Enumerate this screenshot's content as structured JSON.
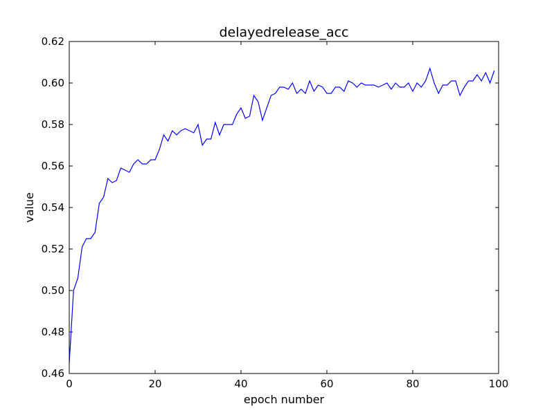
{
  "chart_data": {
    "type": "line",
    "title": "delayedrelease_acc",
    "xlabel": "epoch number",
    "ylabel": "value",
    "xlim": [
      0,
      100
    ],
    "ylim": [
      0.46,
      0.62
    ],
    "xticks": [
      0,
      20,
      40,
      60,
      80,
      100
    ],
    "xtick_labels": [
      "0",
      "20",
      "40",
      "60",
      "80",
      "100"
    ],
    "yticks": [
      0.46,
      0.48,
      0.5,
      0.52,
      0.54,
      0.56,
      0.58,
      0.6,
      0.62
    ],
    "ytick_labels": [
      "0.46",
      "0.48",
      "0.50",
      "0.52",
      "0.54",
      "0.56",
      "0.58",
      "0.60",
      "0.62"
    ],
    "grid": false,
    "legend": "none",
    "line_color": "#0000ff",
    "series": [
      {
        "x": [
          0,
          1,
          2,
          3,
          4,
          5,
          6,
          7,
          8,
          9,
          10,
          11,
          12,
          13,
          14,
          15,
          16,
          17,
          18,
          19,
          20,
          21,
          22,
          23,
          24,
          25,
          26,
          27,
          28,
          29,
          30,
          31,
          32,
          33,
          34,
          35,
          36,
          37,
          38,
          39,
          40,
          41,
          42,
          43,
          44,
          45,
          46,
          47,
          48,
          49,
          50,
          51,
          52,
          53,
          54,
          55,
          56,
          57,
          58,
          59,
          60,
          61,
          62,
          63,
          64,
          65,
          66,
          67,
          68,
          69,
          70,
          71,
          72,
          73,
          74,
          75,
          76,
          77,
          78,
          79,
          80,
          81,
          82,
          83,
          84,
          85,
          86,
          87,
          88,
          89,
          90,
          91,
          92,
          93,
          94,
          95,
          96,
          97,
          98,
          99
        ],
        "values": [
          0.465,
          0.5,
          0.506,
          0.521,
          0.525,
          0.525,
          0.528,
          0.542,
          0.545,
          0.554,
          0.552,
          0.553,
          0.559,
          0.558,
          0.557,
          0.561,
          0.563,
          0.561,
          0.561,
          0.563,
          0.563,
          0.568,
          0.575,
          0.572,
          0.577,
          0.575,
          0.577,
          0.578,
          0.577,
          0.576,
          0.58,
          0.57,
          0.573,
          0.573,
          0.581,
          0.575,
          0.58,
          0.58,
          0.58,
          0.585,
          0.588,
          0.583,
          0.584,
          0.594,
          0.591,
          0.582,
          0.588,
          0.594,
          0.595,
          0.598,
          0.598,
          0.597,
          0.6,
          0.595,
          0.597,
          0.595,
          0.601,
          0.596,
          0.599,
          0.598,
          0.595,
          0.595,
          0.598,
          0.598,
          0.596,
          0.601,
          0.6,
          0.598,
          0.6,
          0.599,
          0.599,
          0.599,
          0.598,
          0.599,
          0.6,
          0.597,
          0.6,
          0.598,
          0.598,
          0.6,
          0.596,
          0.6,
          0.598,
          0.601,
          0.607,
          0.6,
          0.595,
          0.599,
          0.599,
          0.601,
          0.601,
          0.594,
          0.598,
          0.601,
          0.601,
          0.604,
          0.601,
          0.605,
          0.6,
          0.606
        ]
      }
    ]
  }
}
